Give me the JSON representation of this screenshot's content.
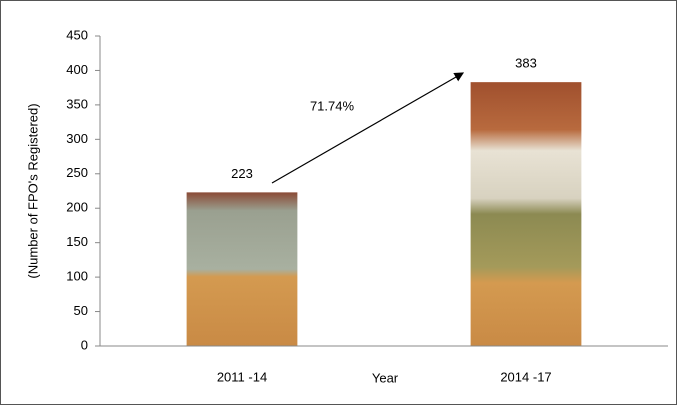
{
  "chart_data": {
    "type": "bar",
    "categories": [
      "2011 -14",
      "2014 -17"
    ],
    "values": [
      223,
      383
    ],
    "x_label": "Year",
    "y_label": "(Number of FPO's Registered)",
    "annotation": "71.74%",
    "ylim": [
      0,
      450
    ],
    "yticks": [
      0,
      50,
      100,
      150,
      200,
      250,
      300,
      350,
      400,
      450
    ]
  }
}
